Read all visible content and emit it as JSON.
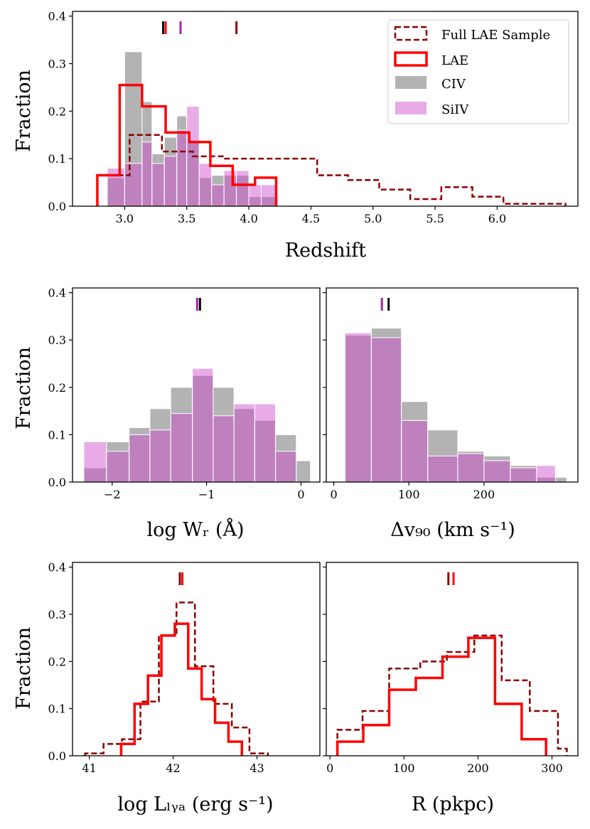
{
  "chart_data": [
    {
      "id": "redshift",
      "type": "histogram",
      "xlabel": "Redshift",
      "ylabel": "Fraction",
      "xlim": [
        2.58,
        6.65
      ],
      "ylim": [
        0,
        0.41
      ],
      "xticks": [
        3.0,
        3.5,
        4.0,
        4.5,
        5.0,
        5.5,
        6.0
      ],
      "xtick_labels": [
        "3.0",
        "3.5",
        "4.0",
        "4.5",
        "5.0",
        "5.5",
        "6.0"
      ],
      "yticks": [
        0.0,
        0.1,
        0.2,
        0.3,
        0.4
      ],
      "ytick_labels": [
        "0.0",
        "0.1",
        "0.2",
        "0.3",
        "0.4"
      ],
      "legend": {
        "position": "top-right",
        "entries": [
          {
            "label": "Full LAE Sample",
            "style": "dashed",
            "color": "#8b0000"
          },
          {
            "label": "LAE",
            "style": "step",
            "color": "#ff0000"
          },
          {
            "label": "CIV",
            "style": "fill",
            "color": "#808080"
          },
          {
            "label": "SiIV",
            "style": "fill",
            "color": "#cc44cc"
          }
        ]
      },
      "bars": [
        {
          "name": "CIV",
          "color": "#808080",
          "opacity": 0.6,
          "edges": [
            2.86,
            3.0,
            3.14,
            3.22,
            3.32,
            3.42,
            3.5,
            3.6,
            3.7,
            3.8,
            3.9,
            4.0,
            4.1,
            4.22
          ],
          "values": [
            0.06,
            0.325,
            0.22,
            0.11,
            0.145,
            0.19,
            0.135,
            0.06,
            0.065,
            0.065,
            0.065,
            0.02,
            0.02
          ]
        },
        {
          "name": "SiIV",
          "color": "#cc44cc",
          "opacity": 0.45,
          "edges": [
            2.86,
            3.0,
            3.14,
            3.22,
            3.32,
            3.42,
            3.5,
            3.6,
            3.7,
            3.8,
            3.9,
            4.0,
            4.1,
            4.22
          ],
          "values": [
            0.08,
            0.09,
            0.135,
            0.09,
            0.105,
            0.16,
            0.21,
            0.09,
            0.045,
            0.075,
            0.075,
            0.045,
            0.045
          ]
        }
      ],
      "steps": [
        {
          "name": "Full LAE Sample",
          "color": "#8b0000",
          "dash": true,
          "edges": [
            2.78,
            3.04,
            3.3,
            3.55,
            3.8,
            4.05,
            4.55,
            4.8,
            5.05,
            5.3,
            5.55,
            5.8,
            6.05,
            6.3,
            6.55
          ],
          "values": [
            0.065,
            0.15,
            0.115,
            0.105,
            0.1,
            0.1,
            0.065,
            0.055,
            0.035,
            0.015,
            0.04,
            0.02,
            0.005,
            0.005
          ]
        },
        {
          "name": "LAE",
          "color": "#ff0000",
          "dash": false,
          "edges": [
            2.78,
            2.96,
            3.14,
            3.33,
            3.52,
            3.69,
            3.87,
            4.05,
            4.22
          ],
          "values": [
            0.065,
            0.255,
            0.21,
            0.155,
            0.135,
            0.085,
            0.045,
            0.06
          ]
        }
      ],
      "markers": [
        {
          "x": 3.31,
          "color": "#000000"
        },
        {
          "x": 3.33,
          "color": "#ff0000"
        },
        {
          "x": 3.45,
          "color": "#aa22aa"
        },
        {
          "x": 3.9,
          "color": "#8b0000"
        }
      ]
    },
    {
      "id": "wr",
      "type": "histogram",
      "xlabel": "log Wᵣ (Å)",
      "ylabel": "Fraction",
      "xlim": [
        -2.42,
        0.2
      ],
      "ylim": [
        0,
        0.41
      ],
      "xticks": [
        -2,
        -1,
        0
      ],
      "xtick_labels": [
        "−2",
        "−1",
        "0"
      ],
      "yticks": [
        0.0,
        0.1,
        0.2,
        0.3,
        0.4
      ],
      "ytick_labels": [
        "0.0",
        "0.1",
        "0.2",
        "0.3",
        "0.4"
      ],
      "bars": [
        {
          "name": "CIV",
          "color": "#808080",
          "opacity": 0.6,
          "edges": [
            -2.3,
            -2.06,
            -1.82,
            -1.6,
            -1.38,
            -1.15,
            -0.93,
            -0.71,
            -0.49,
            -0.27,
            -0.05,
            0.1
          ],
          "values": [
            0.03,
            0.085,
            0.115,
            0.155,
            0.2,
            0.225,
            0.2,
            0.155,
            0.13,
            0.1,
            0.045
          ]
        },
        {
          "name": "SiIV",
          "color": "#cc44cc",
          "opacity": 0.45,
          "edges": [
            -2.3,
            -2.06,
            -1.82,
            -1.6,
            -1.38,
            -1.15,
            -0.93,
            -0.71,
            -0.49,
            -0.27,
            -0.05
          ],
          "values": [
            0.085,
            0.065,
            0.1,
            0.11,
            0.145,
            0.24,
            0.14,
            0.165,
            0.165,
            0.065
          ]
        }
      ],
      "steps": [],
      "markers": [
        {
          "x": -1.1,
          "color": "#aa22aa"
        },
        {
          "x": -1.07,
          "color": "#000000"
        }
      ]
    },
    {
      "id": "dv90",
      "type": "histogram",
      "xlabel": "Δv₉₀ (km s⁻¹)",
      "ylabel": "",
      "xlim": [
        -10,
        325
      ],
      "ylim": [
        0,
        0.41
      ],
      "xticks": [
        0,
        100,
        200
      ],
      "xtick_labels": [
        "0",
        "100",
        "200"
      ],
      "yticks": [
        0.0,
        0.1,
        0.2,
        0.3,
        0.4
      ],
      "ytick_labels": [],
      "bars": [
        {
          "name": "CIV",
          "color": "#808080",
          "opacity": 0.6,
          "edges": [
            15,
            50,
            90,
            125,
            165,
            200,
            235,
            270,
            310
          ],
          "values": [
            0.31,
            0.325,
            0.17,
            0.11,
            0.065,
            0.055,
            0.035,
            0.01
          ]
        },
        {
          "name": "SiIV",
          "color": "#cc44cc",
          "opacity": 0.45,
          "edges": [
            15,
            50,
            90,
            125,
            165,
            200,
            235,
            270,
            295
          ],
          "values": [
            0.315,
            0.305,
            0.13,
            0.055,
            0.06,
            0.045,
            0.03,
            0.035
          ]
        }
      ],
      "steps": [],
      "markers": [
        {
          "x": 64,
          "color": "#aa22aa"
        },
        {
          "x": 73,
          "color": "#000000"
        }
      ]
    },
    {
      "id": "lya",
      "type": "histogram",
      "xlabel": "log Lₗᵧₐ (erg s⁻¹)",
      "ylabel": "Fraction",
      "xlim": [
        40.8,
        43.75
      ],
      "ylim": [
        0,
        0.41
      ],
      "xticks": [
        41,
        42,
        43
      ],
      "xtick_labels": [
        "41",
        "42",
        "43"
      ],
      "yticks": [
        0.0,
        0.1,
        0.2,
        0.3,
        0.4
      ],
      "ytick_labels": [
        "0.0",
        "0.1",
        "0.2",
        "0.3",
        "0.4"
      ],
      "bars": [],
      "steps": [
        {
          "name": "Full LAE Sample",
          "color": "#8b0000",
          "dash": true,
          "edges": [
            40.95,
            41.17,
            41.39,
            41.61,
            41.83,
            42.04,
            42.26,
            42.48,
            42.7,
            42.91,
            43.13
          ],
          "values": [
            0.005,
            0.025,
            0.035,
            0.115,
            0.255,
            0.325,
            0.19,
            0.11,
            0.06,
            0.005
          ]
        },
        {
          "name": "LAE",
          "color": "#ff0000",
          "dash": false,
          "edges": [
            41.38,
            41.54,
            41.7,
            41.86,
            42.02,
            42.18,
            42.34,
            42.5,
            42.66,
            42.82
          ],
          "values": [
            0.025,
            0.11,
            0.17,
            0.255,
            0.28,
            0.185,
            0.12,
            0.07,
            0.03
          ]
        }
      ],
      "markers": [
        {
          "x": 42.08,
          "color": "#8b0000"
        },
        {
          "x": 42.11,
          "color": "#ff0000"
        }
      ]
    },
    {
      "id": "R",
      "type": "histogram",
      "xlabel": "R (pkpc)",
      "ylabel": "",
      "xlim": [
        -5,
        335
      ],
      "ylim": [
        0,
        0.41
      ],
      "xticks": [
        0,
        100,
        200,
        300
      ],
      "xtick_labels": [
        "0",
        "100",
        "200",
        "300"
      ],
      "yticks": [
        0.0,
        0.1,
        0.2,
        0.3,
        0.4
      ],
      "ytick_labels": [],
      "bars": [],
      "steps": [
        {
          "name": "Full LAE Sample",
          "color": "#8b0000",
          "dash": true,
          "edges": [
            10,
            44,
            80,
            122,
            158,
            195,
            232,
            270,
            308,
            320
          ],
          "values": [
            0.055,
            0.095,
            0.185,
            0.2,
            0.22,
            0.255,
            0.16,
            0.095,
            0.015
          ]
        },
        {
          "name": "LAE",
          "color": "#ff0000",
          "dash": false,
          "edges": [
            10,
            45,
            80,
            116,
            152,
            187,
            223,
            259,
            292
          ],
          "values": [
            0.03,
            0.065,
            0.14,
            0.165,
            0.21,
            0.25,
            0.11,
            0.035
          ]
        }
      ],
      "markers": [
        {
          "x": 160,
          "color": "#8b0000"
        },
        {
          "x": 167,
          "color": "#ff0000"
        }
      ]
    }
  ]
}
